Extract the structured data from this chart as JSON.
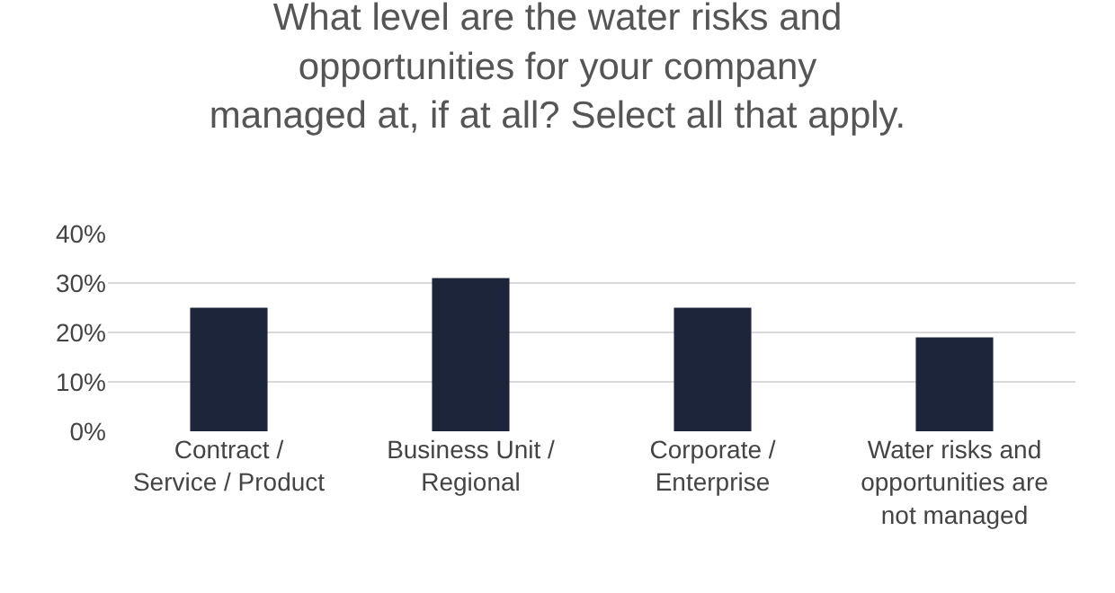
{
  "chart_data": {
    "type": "bar",
    "title": "What level are the water risks and\nopportunities for your company\nmanaged at, if at all? Select all that apply.",
    "categories": [
      "Contract / Service / Product",
      "Business Unit / Regional",
      "Corporate / Enterprise",
      "Water risks and opportunities are not managed"
    ],
    "values": [
      25,
      31,
      25,
      19
    ],
    "color": "#1c253a",
    "ylim": [
      0,
      40
    ],
    "yticks": [
      {
        "value": 0,
        "label": "0%"
      },
      {
        "value": 10,
        "label": "10%"
      },
      {
        "value": 20,
        "label": "20%"
      },
      {
        "value": 30,
        "label": "30%"
      },
      {
        "value": 40,
        "label": "40%"
      }
    ],
    "grid": true
  }
}
